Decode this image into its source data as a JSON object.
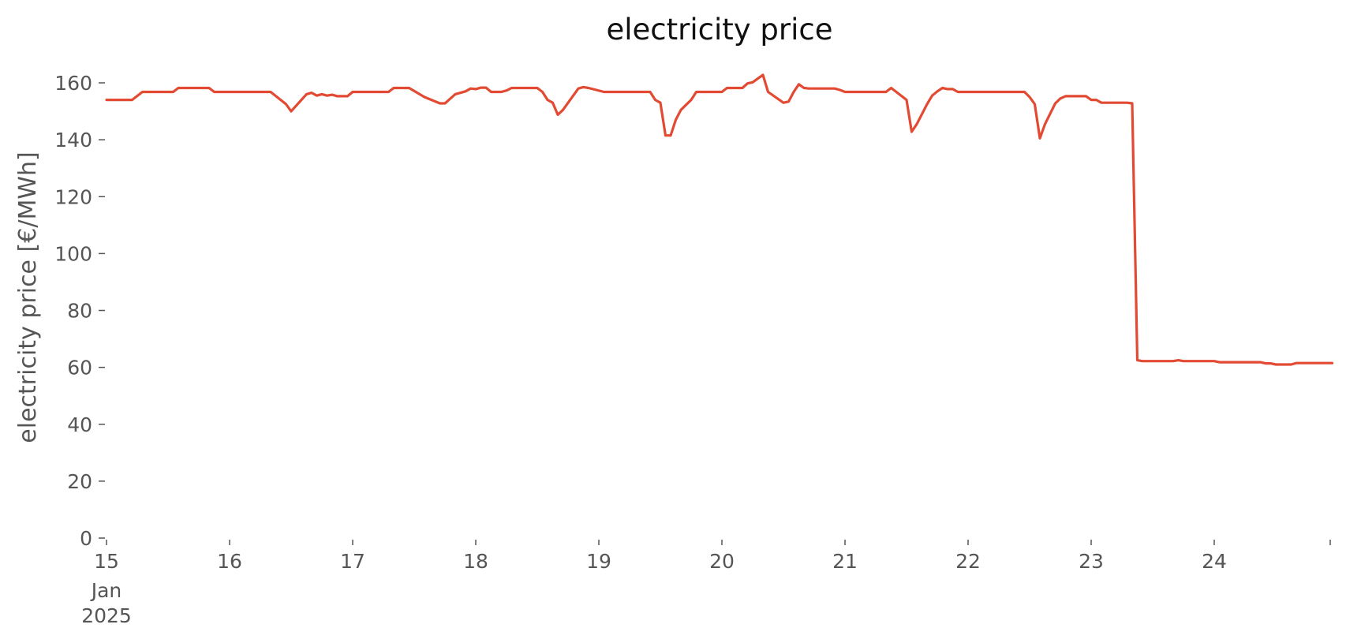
{
  "chart_data": {
    "type": "line",
    "title": "electricity price",
    "xlabel": "",
    "ylabel": "electricity price [€/MWh]",
    "ylim": [
      0,
      170
    ],
    "xlim": [
      "2025-01-15",
      "2025-01-24 23:00"
    ],
    "grid": false,
    "x_ticks": [
      "15",
      "16",
      "17",
      "18",
      "19",
      "20",
      "21",
      "22",
      "23",
      "24"
    ],
    "x_tick_sublabel": [
      "Jan",
      "2025"
    ],
    "y_ticks": [
      0,
      20,
      40,
      60,
      80,
      100,
      120,
      140,
      160
    ],
    "colors": {
      "line": "#E24A33"
    },
    "series": [
      {
        "points": [
          [
            "2025-01-15 00:00",
            154
          ],
          [
            "2025-01-15 05:00",
            154
          ],
          [
            "2025-01-15 07:00",
            156.8
          ],
          [
            "2025-01-15 13:00",
            156.8
          ],
          [
            "2025-01-15 14:00",
            158.2
          ],
          [
            "2025-01-15 20:00",
            158.2
          ],
          [
            "2025-01-15 21:00",
            156.8
          ],
          [
            "2025-01-16 08:00",
            156.8
          ],
          [
            "2025-01-16 11:00",
            152.5
          ],
          [
            "2025-01-16 12:00",
            150
          ],
          [
            "2025-01-16 15:00",
            156
          ],
          [
            "2025-01-16 16:00",
            156.5
          ],
          [
            "2025-01-16 17:00",
            155.5
          ],
          [
            "2025-01-16 18:00",
            156
          ],
          [
            "2025-01-16 19:00",
            155.5
          ],
          [
            "2025-01-16 20:00",
            155.8
          ],
          [
            "2025-01-16 21:00",
            155.3
          ],
          [
            "2025-01-16 23:00",
            155.3
          ],
          [
            "2025-01-17 00:00",
            156.8
          ],
          [
            "2025-01-17 07:00",
            156.8
          ],
          [
            "2025-01-17 08:00",
            158.2
          ],
          [
            "2025-01-17 11:00",
            158.2
          ],
          [
            "2025-01-17 14:00",
            155
          ],
          [
            "2025-01-17 17:00",
            152.8
          ],
          [
            "2025-01-17 18:00",
            152.8
          ],
          [
            "2025-01-17 20:00",
            156
          ],
          [
            "2025-01-17 22:00",
            157
          ],
          [
            "2025-01-17 23:00",
            158
          ],
          [
            "2025-01-18 00:00",
            157.8
          ],
          [
            "2025-01-18 01:00",
            158.3
          ],
          [
            "2025-01-18 02:00",
            158.3
          ],
          [
            "2025-01-18 03:00",
            156.8
          ],
          [
            "2025-01-18 05:00",
            156.8
          ],
          [
            "2025-01-18 06:00",
            157.3
          ],
          [
            "2025-01-18 07:00",
            158.2
          ],
          [
            "2025-01-18 12:00",
            158.2
          ],
          [
            "2025-01-18 13:00",
            156.8
          ],
          [
            "2025-01-18 14:00",
            154
          ],
          [
            "2025-01-18 15:00",
            153
          ],
          [
            "2025-01-18 16:00",
            148.8
          ],
          [
            "2025-01-18 17:00",
            150.5
          ],
          [
            "2025-01-18 20:00",
            158
          ],
          [
            "2025-01-18 21:00",
            158.5
          ],
          [
            "2025-01-18 22:00",
            158.2
          ],
          [
            "2025-01-19 01:00",
            156.8
          ],
          [
            "2025-01-19 07:00",
            156.8
          ],
          [
            "2025-01-19 10:00",
            156.8
          ],
          [
            "2025-01-19 11:00",
            154
          ],
          [
            "2025-01-19 12:00",
            153
          ],
          [
            "2025-01-19 13:00",
            141.5
          ],
          [
            "2025-01-19 14:00",
            141.5
          ],
          [
            "2025-01-19 15:00",
            147
          ],
          [
            "2025-01-19 16:00",
            150.5
          ],
          [
            "2025-01-19 18:00",
            154
          ],
          [
            "2025-01-19 19:00",
            156.8
          ],
          [
            "2025-01-20 00:00",
            156.8
          ],
          [
            "2025-01-20 01:00",
            158.2
          ],
          [
            "2025-01-20 04:00",
            158.2
          ],
          [
            "2025-01-20 05:00",
            159.8
          ],
          [
            "2025-01-20 06:00",
            160.2
          ],
          [
            "2025-01-20 07:00",
            161.5
          ],
          [
            "2025-01-20 08:00",
            162.8
          ],
          [
            "2025-01-20 09:00",
            156.8
          ],
          [
            "2025-01-20 12:00",
            153
          ],
          [
            "2025-01-20 13:00",
            153.4
          ],
          [
            "2025-01-20 14:00",
            156.8
          ],
          [
            "2025-01-20 15:00",
            159.5
          ],
          [
            "2025-01-20 16:00",
            158.2
          ],
          [
            "2025-01-20 17:00",
            158
          ],
          [
            "2025-01-20 22:00",
            158
          ],
          [
            "2025-01-20 23:00",
            157.5
          ],
          [
            "2025-01-21 00:00",
            156.8
          ],
          [
            "2025-01-21 08:00",
            156.8
          ],
          [
            "2025-01-21 09:00",
            158.2
          ],
          [
            "2025-01-21 10:00",
            156.8
          ],
          [
            "2025-01-21 12:00",
            154
          ],
          [
            "2025-01-21 13:00",
            142.8
          ],
          [
            "2025-01-21 14:00",
            145.5
          ],
          [
            "2025-01-21 16:00",
            152.5
          ],
          [
            "2025-01-21 17:00",
            155.5
          ],
          [
            "2025-01-21 18:00",
            157
          ],
          [
            "2025-01-21 19:00",
            158.2
          ],
          [
            "2025-01-21 20:00",
            157.8
          ],
          [
            "2025-01-21 21:00",
            157.8
          ],
          [
            "2025-01-21 22:00",
            156.8
          ],
          [
            "2025-01-22 11:00",
            156.8
          ],
          [
            "2025-01-22 12:00",
            155
          ],
          [
            "2025-01-22 13:00",
            152.5
          ],
          [
            "2025-01-22 14:00",
            140.5
          ],
          [
            "2025-01-22 15:00",
            145.5
          ],
          [
            "2025-01-22 17:00",
            152.8
          ],
          [
            "2025-01-22 18:00",
            154.5
          ],
          [
            "2025-01-22 19:00",
            155.3
          ],
          [
            "2025-01-22 23:00",
            155.3
          ],
          [
            "2025-01-23 00:00",
            154
          ],
          [
            "2025-01-23 01:00",
            154
          ],
          [
            "2025-01-23 02:00",
            153
          ],
          [
            "2025-01-23 07:00",
            153
          ],
          [
            "2025-01-23 08:00",
            152.8
          ],
          [
            "2025-01-23 09:00",
            62.5
          ],
          [
            "2025-01-23 10:00",
            62.2
          ],
          [
            "2025-01-23 16:00",
            62.2
          ],
          [
            "2025-01-23 17:00",
            62.5
          ],
          [
            "2025-01-23 18:00",
            62.2
          ],
          [
            "2025-01-24 00:00",
            62.2
          ],
          [
            "2025-01-24 01:00",
            61.8
          ],
          [
            "2025-01-24 09:00",
            61.8
          ],
          [
            "2025-01-24 10:00",
            61.4
          ],
          [
            "2025-01-24 11:00",
            61.4
          ],
          [
            "2025-01-24 12:00",
            61
          ],
          [
            "2025-01-24 15:00",
            61
          ],
          [
            "2025-01-24 16:00",
            61.5
          ],
          [
            "2025-01-24 23:00",
            61.5
          ]
        ]
      }
    ]
  }
}
